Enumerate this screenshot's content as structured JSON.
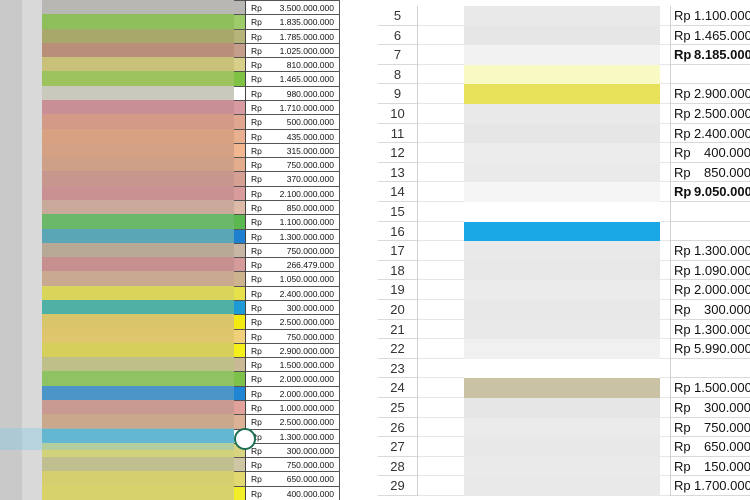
{
  "left_sheet": {
    "currency": "Rp",
    "rows": [
      {
        "amount": "3.500.000.000",
        "fill": "#b9b7b4",
        "chip": "#b9b7b4"
      },
      {
        "amount": "1.835.000.000",
        "fill": "#8fbf5a",
        "chip": "#9ecb69"
      },
      {
        "amount": "1.785.000.000",
        "fill": "#a8a86a",
        "chip": "#b6b478"
      },
      {
        "amount": "1.025.000.000",
        "fill": "#b98f7a",
        "chip": "#c59e8b"
      },
      {
        "amount": "810.000.000",
        "fill": "#c9c07a",
        "chip": "#d8cf8a"
      },
      {
        "amount": "1.465.000.000",
        "fill": "#9dc35f",
        "chip": "#7fc244"
      },
      {
        "amount": "980.000.000",
        "fill": "#c9cabd",
        "chip": "#ffffff"
      },
      {
        "amount": "1.710.000.000",
        "fill": "#c98f96",
        "chip": "#d69aa0"
      },
      {
        "amount": "500.000.000",
        "fill": "#d39a87",
        "chip": "#e0a68f"
      },
      {
        "amount": "435.000.000",
        "fill": "#d8a282",
        "chip": "#e8b08f"
      },
      {
        "amount": "315.000.000",
        "fill": "#d5a185",
        "chip": "#f2b691"
      },
      {
        "amount": "750.000.000",
        "fill": "#cfa088",
        "chip": "#e2ac8d"
      },
      {
        "amount": "370.000.000",
        "fill": "#c7968c",
        "chip": "#d59f93"
      },
      {
        "amount": "2.100.000.000",
        "fill": "#c99191",
        "chip": "#d89c9c"
      },
      {
        "amount": "850.000.000",
        "fill": "#c9a99a",
        "chip": "#ddbba8"
      },
      {
        "amount": "1.100.000.000",
        "fill": "#6cb86a",
        "chip": "#5bb750"
      },
      {
        "amount": "1.300.000.000",
        "fill": "#5aa6b6",
        "chip": "#1f7fd0"
      },
      {
        "amount": "750.000.000",
        "fill": "#b8a996",
        "chip": "#c7b6a3"
      },
      {
        "amount": "266.479.000",
        "fill": "#c79090",
        "chip": "#d59a9a"
      },
      {
        "amount": "1.050.000.000",
        "fill": "#c9a98f",
        "chip": "#cdb48f"
      },
      {
        "amount": "2.400.000.000",
        "fill": "#d9d55a",
        "chip": "#e6e04a"
      },
      {
        "amount": "300.000.000",
        "fill": "#4fb1a6",
        "chip": "#1e9ad6"
      },
      {
        "amount": "2.500.000.000",
        "fill": "#d9c56a",
        "chip": "#f2ea10"
      },
      {
        "amount": "750.000.000",
        "fill": "#e0c56f",
        "chip": "#f0d078"
      },
      {
        "amount": "2.900.000.000",
        "fill": "#d6cf5b",
        "chip": "#f5ef1a"
      },
      {
        "amount": "1.500.000.000",
        "fill": "#bfbf8a",
        "chip": "#c9b994"
      },
      {
        "amount": "2.000.000.000",
        "fill": "#8fc263",
        "chip": "#7dc14a"
      },
      {
        "amount": "2.000.000.000",
        "fill": "#4c95c9",
        "chip": "#1f86d4"
      },
      {
        "amount": "1.000.000.000",
        "fill": "#c99a92",
        "chip": "#e2a19a"
      },
      {
        "amount": "2.500.000.000",
        "fill": "#c9a88c",
        "chip": "#dcb296"
      },
      {
        "amount": "1.300.000.000",
        "fill": "#5aaec5",
        "chip": "#ffffff"
      },
      {
        "amount": "300.000.000",
        "fill": "#d2d27a",
        "chip": "#d8d480"
      },
      {
        "amount": "750.000.000",
        "fill": "#bfbf8f",
        "chip": "#cfc7a3"
      },
      {
        "amount": "650.000.000",
        "fill": "#d6cf70",
        "chip": "#e2d872"
      },
      {
        "amount": "400.000.000",
        "fill": "#d7d36a",
        "chip": "#f2ee2a"
      }
    ]
  },
  "right_sheet": {
    "currency": "Rp",
    "rows": [
      {
        "num": "5",
        "amount": "1.100.000",
        "bold": false,
        "fill": "#e9e9e9"
      },
      {
        "num": "6",
        "amount": "1.465.000",
        "bold": false,
        "fill": "#e6e6e6"
      },
      {
        "num": "7",
        "amount": "8.185.000",
        "bold": true,
        "fill": "#f2f2f2"
      },
      {
        "num": "8",
        "amount": "",
        "bold": false,
        "fill": "#f9f9c4",
        "no_rp": true
      },
      {
        "num": "9",
        "amount": "2.900.000",
        "bold": false,
        "fill": "#e7e25a"
      },
      {
        "num": "10",
        "amount": "2.500.000",
        "bold": false,
        "fill": "#e9e9e9"
      },
      {
        "num": "11",
        "amount": "2.400.000",
        "bold": false,
        "fill": "#e6e6e6"
      },
      {
        "num": "12",
        "amount": "400.000",
        "bold": false,
        "fill": "#ececec"
      },
      {
        "num": "13",
        "amount": "850.000",
        "bold": false,
        "fill": "#eaeaea"
      },
      {
        "num": "14",
        "amount": "9.050.000",
        "bold": true,
        "fill": "#f5f5f5"
      },
      {
        "num": "15",
        "amount": "",
        "bold": false,
        "fill": "#ffffff",
        "no_rp": true
      },
      {
        "num": "16",
        "amount": "",
        "bold": false,
        "fill": "#1aa7e6",
        "no_rp": true
      },
      {
        "num": "17",
        "amount": "1.300.000",
        "bold": false,
        "fill": "#e9e9e9"
      },
      {
        "num": "18",
        "amount": "1.090.000",
        "bold": false,
        "fill": "#e7e7e7"
      },
      {
        "num": "19",
        "amount": "2.000.000",
        "bold": false,
        "fill": "#ebebeb"
      },
      {
        "num": "20",
        "amount": "300.000",
        "bold": false,
        "fill": "#e8e8e8"
      },
      {
        "num": "21",
        "amount": "1.300.000",
        "bold": false,
        "fill": "#e9e9e9"
      },
      {
        "num": "22",
        "amount": "5.990.000",
        "bold": false,
        "fill": "#f0f0f0"
      },
      {
        "num": "23",
        "amount": "",
        "bold": false,
        "fill": "#ffffff",
        "no_rp": true
      },
      {
        "num": "24",
        "amount": "1.500.000",
        "bold": false,
        "fill": "#c9c2a4"
      },
      {
        "num": "25",
        "amount": "300.000",
        "bold": false,
        "fill": "#e6e6e6"
      },
      {
        "num": "26",
        "amount": "750.000",
        "bold": false,
        "fill": "#ebebeb"
      },
      {
        "num": "27",
        "amount": "650.000",
        "bold": false,
        "fill": "#e8e8e8"
      },
      {
        "num": "28",
        "amount": "150.000",
        "bold": false,
        "fill": "#eaeaea"
      },
      {
        "num": "29",
        "amount": "1.700.000",
        "bold": false,
        "fill": "#e9e9e9"
      }
    ]
  }
}
